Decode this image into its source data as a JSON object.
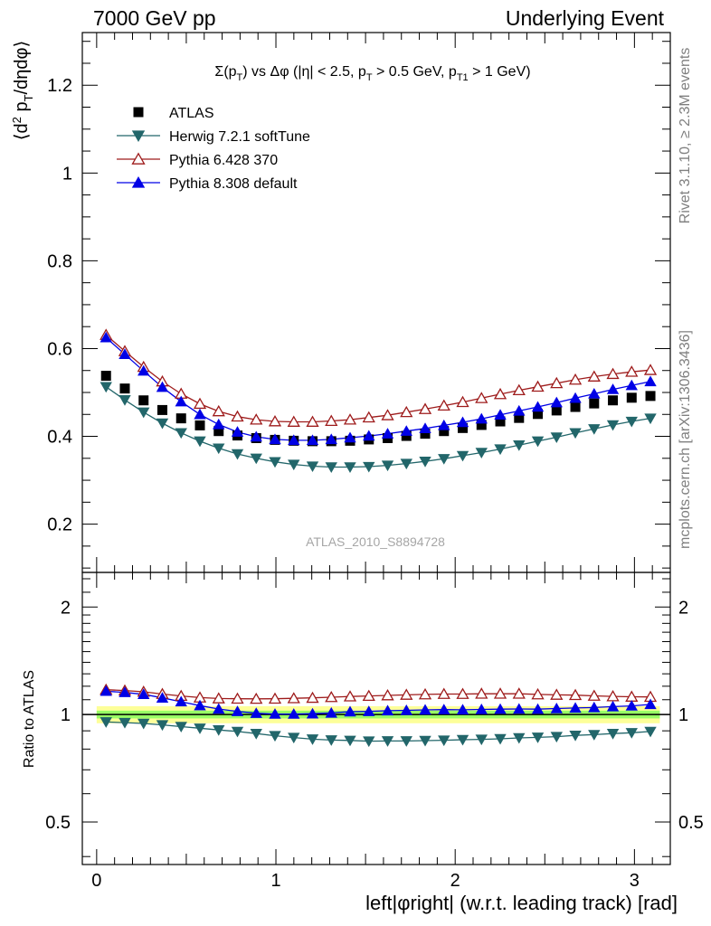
{
  "header": {
    "left": "7000 GeV pp",
    "right": "Underlying Event"
  },
  "side_labels": {
    "rivet": "Rivet 3.1.10, ≥ 2.3M events",
    "mcplots": "mcplots.cern.ch [arXiv:1306.3436]"
  },
  "chart_data": [
    {
      "type": "scatter",
      "panel": "main",
      "title_parts": {
        "sigma": "Σ(p",
        "sub_T": "T",
        "vs": ") vs Δφ (|η| < 2.5, p",
        "sub_T2": "T",
        "cut1": " > 0.5 GeV, p",
        "sub_T1": "T1",
        "cut2": " > 1 GeV)"
      },
      "ylabel_parts": {
        "open": "⟨d",
        "sup2": "2",
        "p": " p",
        "subT": "T",
        "rest": "/dηdφ⟩"
      },
      "watermark": "ATLAS_2010_S8894728",
      "xlim": [
        -0.08,
        3.2
      ],
      "ylim": [
        0.09,
        1.32
      ],
      "yticks": [
        0.2,
        0.4,
        0.6,
        0.8,
        1.0,
        1.2
      ],
      "ytick_labels": [
        "0.2",
        "0.4",
        "0.6",
        "0.8",
        "1",
        "1.2"
      ],
      "legend_position": "top-left",
      "x": [
        0.0524,
        0.1571,
        0.2618,
        0.3665,
        0.4712,
        0.576,
        0.6807,
        0.7854,
        0.8901,
        0.9948,
        1.0996,
        1.2043,
        1.309,
        1.4137,
        1.5184,
        1.6232,
        1.7279,
        1.8326,
        1.9373,
        2.042,
        2.1468,
        2.2515,
        2.3562,
        2.4609,
        2.5656,
        2.6704,
        2.7751,
        2.8798,
        2.9845,
        3.0892
      ],
      "series": [
        {
          "name": "ATLAS",
          "color": "#000000",
          "marker": "square",
          "values": [
            0.538,
            0.509,
            0.482,
            0.46,
            0.441,
            0.425,
            0.412,
            0.402,
            0.396,
            0.392,
            0.39,
            0.389,
            0.389,
            0.39,
            0.393,
            0.396,
            0.401,
            0.406,
            0.412,
            0.419,
            0.426,
            0.434,
            0.442,
            0.451,
            0.459,
            0.467,
            0.475,
            0.482,
            0.488,
            0.492
          ]
        },
        {
          "name": "Herwig 7.2.1 softTune",
          "color": "#22666a",
          "marker": "triangle-down",
          "values": [
            0.513,
            0.483,
            0.455,
            0.43,
            0.408,
            0.389,
            0.373,
            0.36,
            0.35,
            0.342,
            0.336,
            0.332,
            0.33,
            0.33,
            0.331,
            0.334,
            0.338,
            0.343,
            0.349,
            0.356,
            0.363,
            0.371,
            0.38,
            0.389,
            0.398,
            0.408,
            0.417,
            0.426,
            0.434,
            0.441
          ]
        },
        {
          "name": "Pythia 6.428 370",
          "color": "#9e1b1b",
          "marker": "triangle-up-open",
          "values": [
            0.631,
            0.594,
            0.558,
            0.525,
            0.497,
            0.474,
            0.457,
            0.445,
            0.438,
            0.434,
            0.433,
            0.433,
            0.435,
            0.438,
            0.443,
            0.448,
            0.455,
            0.462,
            0.47,
            0.478,
            0.487,
            0.496,
            0.505,
            0.513,
            0.521,
            0.529,
            0.536,
            0.542,
            0.547,
            0.551
          ]
        },
        {
          "name": "Pythia 8.308 default",
          "color": "#0000e6",
          "marker": "triangle-up",
          "values": [
            0.625,
            0.587,
            0.549,
            0.512,
            0.479,
            0.45,
            0.427,
            0.41,
            0.399,
            0.393,
            0.391,
            0.391,
            0.393,
            0.397,
            0.401,
            0.406,
            0.412,
            0.418,
            0.425,
            0.432,
            0.44,
            0.449,
            0.458,
            0.467,
            0.477,
            0.487,
            0.497,
            0.507,
            0.516,
            0.525
          ]
        }
      ]
    },
    {
      "type": "scatter",
      "panel": "ratio",
      "ylabel": "Ratio to ATLAS",
      "xlabel": "left|φright| (w.r.t. leading track) [rad]",
      "xlim": [
        -0.08,
        3.2
      ],
      "ylim": [
        0.38,
        2.5
      ],
      "log_y": true,
      "xticks": [
        0,
        1,
        2,
        3
      ],
      "xtick_labels": [
        "0",
        "1",
        "2",
        "3"
      ],
      "yticks": [
        0.5,
        1,
        2
      ],
      "ytick_labels": [
        "0.5",
        "1",
        "2"
      ],
      "bands": [
        {
          "color": "#fdff99",
          "half_width": 0.055
        },
        {
          "color": "#99ff66",
          "half_width": 0.025
        }
      ],
      "series": [
        {
          "name": "Herwig 7.2.1 softTune",
          "color": "#22666a",
          "marker": "triangle-down",
          "values": [
            0.953,
            0.949,
            0.944,
            0.935,
            0.925,
            0.915,
            0.905,
            0.896,
            0.884,
            0.872,
            0.862,
            0.853,
            0.848,
            0.846,
            0.842,
            0.843,
            0.843,
            0.845,
            0.847,
            0.85,
            0.852,
            0.855,
            0.86,
            0.863,
            0.867,
            0.874,
            0.878,
            0.884,
            0.889,
            0.896
          ]
        },
        {
          "name": "Pythia 6.428 370",
          "color": "#9e1b1b",
          "marker": "triangle-up-open",
          "values": [
            1.173,
            1.167,
            1.158,
            1.141,
            1.127,
            1.115,
            1.109,
            1.107,
            1.106,
            1.107,
            1.11,
            1.113,
            1.118,
            1.123,
            1.127,
            1.131,
            1.135,
            1.138,
            1.141,
            1.141,
            1.143,
            1.143,
            1.143,
            1.138,
            1.135,
            1.133,
            1.128,
            1.124,
            1.121,
            1.12
          ]
        },
        {
          "name": "Pythia 8.308 default",
          "color": "#0000e6",
          "marker": "triangle-up",
          "values": [
            1.162,
            1.153,
            1.139,
            1.113,
            1.086,
            1.059,
            1.036,
            1.02,
            1.008,
            1.003,
            1.003,
            1.005,
            1.01,
            1.018,
            1.02,
            1.025,
            1.027,
            1.03,
            1.032,
            1.031,
            1.033,
            1.035,
            1.036,
            1.035,
            1.039,
            1.043,
            1.046,
            1.052,
            1.057,
            1.067
          ]
        }
      ]
    }
  ]
}
